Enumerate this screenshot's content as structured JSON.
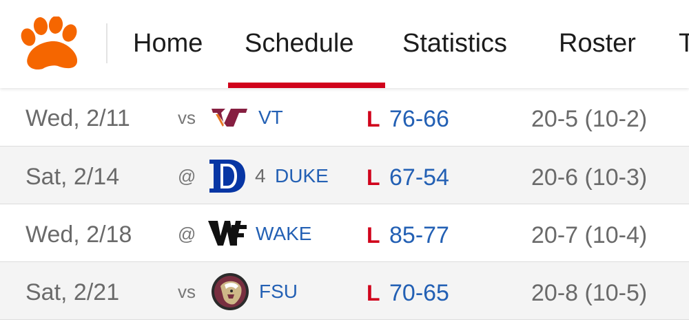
{
  "nav": {
    "tabs": [
      {
        "label": "Home"
      },
      {
        "label": "Schedule"
      },
      {
        "label": "Statistics"
      },
      {
        "label": "Roster"
      },
      {
        "label": "T"
      }
    ],
    "active_tab": "Schedule",
    "logo_icon": "paw-icon",
    "colors": {
      "logo": "#f56600",
      "active_underline": "#d0021b"
    }
  },
  "games": [
    {
      "date": "Wed, 2/11",
      "site": "vs",
      "rank": "",
      "opponent": "VT",
      "logo_icon": "vt-logo-icon",
      "result": "L",
      "score": "76-66",
      "record": "20-5 (10-2)"
    },
    {
      "date": "Sat, 2/14",
      "site": "@",
      "rank": "4",
      "opponent": "DUKE",
      "logo_icon": "duke-logo-icon",
      "result": "L",
      "score": "67-54",
      "record": "20-6 (10-3)"
    },
    {
      "date": "Wed, 2/18",
      "site": "@",
      "rank": "",
      "opponent": "WAKE",
      "logo_icon": "wf-logo-icon",
      "result": "L",
      "score": "85-77",
      "record": "20-7 (10-4)"
    },
    {
      "date": "Sat, 2/21",
      "site": "vs",
      "rank": "",
      "opponent": "FSU",
      "logo_icon": "fsu-logo-icon",
      "result": "L",
      "score": "70-65",
      "record": "20-8 (10-5)"
    }
  ],
  "colors": {
    "loss": "#d0021b",
    "link": "#2360b4",
    "muted": "#6a6a6a"
  }
}
